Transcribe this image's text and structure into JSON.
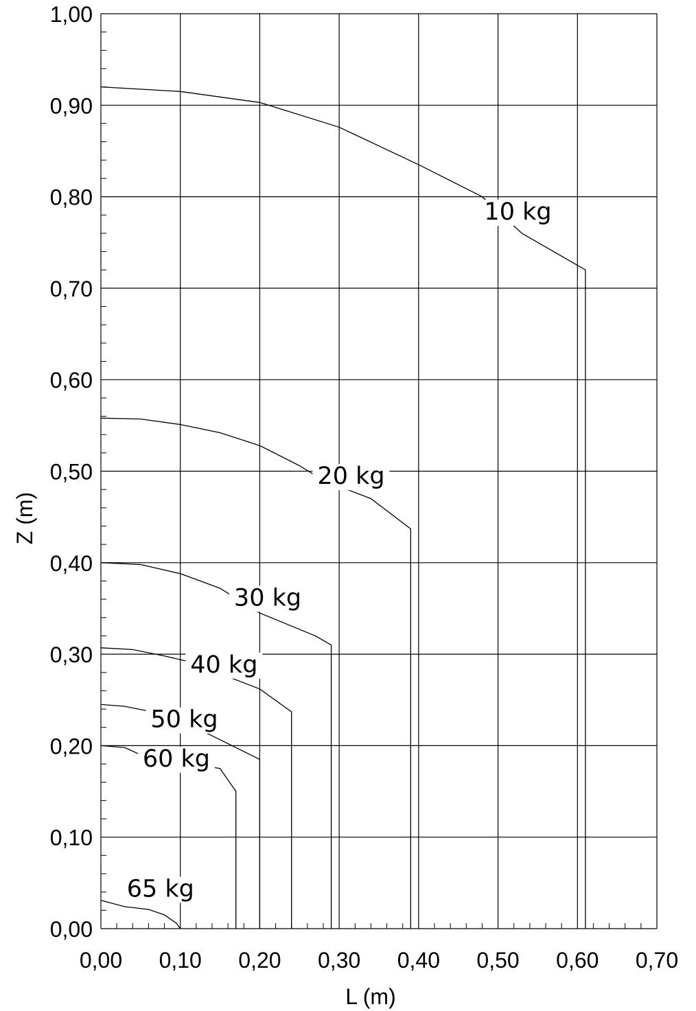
{
  "chart_data": {
    "type": "line",
    "title": "",
    "xlabel": "L (m)",
    "ylabel": "Z (m)",
    "xlim": [
      0,
      0.7
    ],
    "ylim": [
      0,
      1.0
    ],
    "x_ticks": [
      "0,00",
      "0,10",
      "0,20",
      "0,30",
      "0,40",
      "0,50",
      "0,60",
      "0,70"
    ],
    "y_ticks": [
      "0,00",
      "0,10",
      "0,20",
      "0,30",
      "0,40",
      "0,50",
      "0,60",
      "0,70",
      "0,80",
      "0,90",
      "1,00"
    ],
    "grid": true,
    "legend": "none",
    "series": [
      {
        "name": "10 kg",
        "x": [
          0,
          0.1,
          0.2,
          0.3,
          0.4,
          0.48,
          0.53,
          0.61,
          0.61
        ],
        "y": [
          0.92,
          0.915,
          0.903,
          0.876,
          0.835,
          0.8,
          0.76,
          0.72,
          0
        ]
      },
      {
        "name": "20 kg",
        "x": [
          0,
          0.05,
          0.1,
          0.15,
          0.2,
          0.25,
          0.28,
          0.34,
          0.39,
          0.39
        ],
        "y": [
          0.558,
          0.557,
          0.551,
          0.542,
          0.528,
          0.506,
          0.49,
          0.47,
          0.437,
          0
        ]
      },
      {
        "name": "30 kg",
        "x": [
          0,
          0.05,
          0.1,
          0.15,
          0.2,
          0.27,
          0.29,
          0.29
        ],
        "y": [
          0.4,
          0.398,
          0.388,
          0.372,
          0.345,
          0.32,
          0.31,
          0
        ]
      },
      {
        "name": "40 kg",
        "x": [
          0,
          0.04,
          0.08,
          0.11,
          0.2,
          0.24,
          0.24
        ],
        "y": [
          0.307,
          0.305,
          0.298,
          0.292,
          0.262,
          0.237,
          0
        ]
      },
      {
        "name": "50 kg",
        "x": [
          0,
          0.03,
          0.07,
          0.1,
          0.2,
          0.2
        ],
        "y": [
          0.245,
          0.243,
          0.236,
          0.228,
          0.185,
          0
        ]
      },
      {
        "name": "60 kg",
        "x": [
          0,
          0.03,
          0.05,
          0.15,
          0.17,
          0.17
        ],
        "y": [
          0.2,
          0.198,
          0.19,
          0.175,
          0.15,
          0
        ]
      },
      {
        "name": "65 kg",
        "x": [
          0,
          0.03,
          0.06,
          0.08,
          0.095,
          0.1
        ],
        "y": [
          0.031,
          0.024,
          0.021,
          0.015,
          0.006,
          0
        ]
      }
    ],
    "labels": [
      {
        "text": "10 kg",
        "x": 0.525,
        "y": 0.775
      },
      {
        "text": "20 kg",
        "x": 0.315,
        "y": 0.486
      },
      {
        "text": "30 kg",
        "x": 0.21,
        "y": 0.353
      },
      {
        "text": "40 kg",
        "x": 0.155,
        "y": 0.28
      },
      {
        "text": "50 kg",
        "x": 0.105,
        "y": 0.22
      },
      {
        "text": "60 kg",
        "x": 0.095,
        "y": 0.177
      },
      {
        "text": "65 kg",
        "x": 0.075,
        "y": 0.035
      }
    ]
  }
}
